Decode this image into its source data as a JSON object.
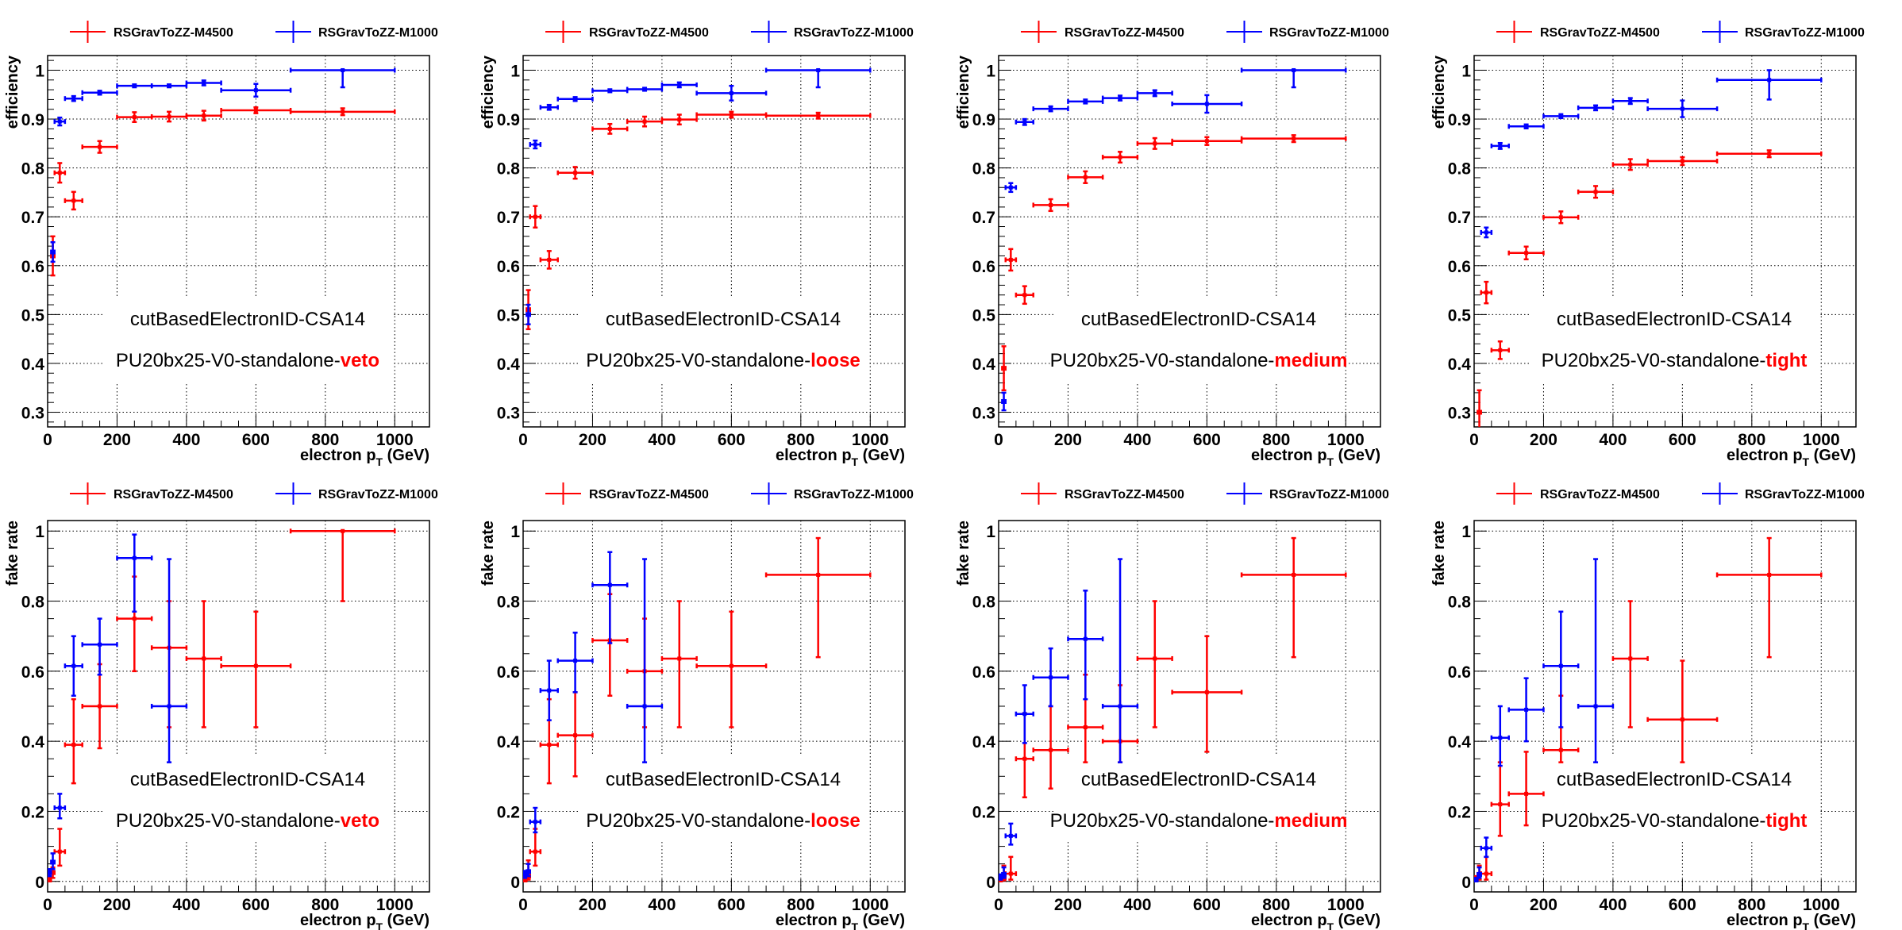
{
  "colors": {
    "M4500": "#ff0000",
    "M1000": "#0000ff"
  },
  "chart_data": [
    {
      "type": "scatter",
      "panel": "efficiency-veto",
      "xlabel": "electron p",
      "xlabel_sub": "T",
      "xlabel_unit": " (GeV)",
      "ylabel": "efficiency",
      "xlim": [
        0,
        1100
      ],
      "ylim": [
        0.27,
        1.03
      ],
      "xticks": [
        0,
        200,
        400,
        600,
        800,
        1000
      ],
      "yticks": [
        0.3,
        0.4,
        0.5,
        0.6,
        0.7,
        0.8,
        0.9,
        1
      ],
      "ytick_labels": [
        "0.3",
        "0.4",
        "0.5",
        "0.6",
        "0.7",
        "0.8",
        "0.9",
        "1"
      ],
      "grid": true,
      "legend": "top",
      "annotation": "cutBasedElectronID-CSA14",
      "annotation2_prefix": "PU20bx25-V0-standalone-",
      "annotation2_highlight": "veto",
      "x": [
        15,
        35,
        75,
        150,
        250,
        350,
        450,
        600,
        850
      ],
      "x_low": [
        10,
        20,
        50,
        100,
        200,
        300,
        400,
        500,
        700
      ],
      "x_high": [
        20,
        50,
        100,
        200,
        300,
        400,
        500,
        700,
        1000
      ],
      "series": [
        {
          "name": "RSGravToZZ-M4500",
          "color": "#ff0000",
          "y": [
            0.62,
            0.79,
            0.733,
            0.843,
            0.904,
            0.905,
            0.907,
            0.918,
            0.915
          ],
          "err": [
            0.04,
            0.02,
            0.018,
            0.012,
            0.01,
            0.01,
            0.01,
            0.006,
            0.007
          ]
        },
        {
          "name": "RSGravToZZ-M1000",
          "color": "#0000ff",
          "y": [
            0.628,
            0.895,
            0.942,
            0.954,
            0.968,
            0.968,
            0.974,
            0.959,
            1.0
          ],
          "err": [
            0.02,
            0.008,
            0.005,
            0.004,
            0.003,
            0.003,
            0.005,
            0.013,
            0.035
          ]
        }
      ]
    },
    {
      "type": "scatter",
      "panel": "efficiency-loose",
      "xlabel": "electron p",
      "xlabel_sub": "T",
      "xlabel_unit": " (GeV)",
      "ylabel": "efficiency",
      "xlim": [
        0,
        1100
      ],
      "ylim": [
        0.27,
        1.03
      ],
      "xticks": [
        0,
        200,
        400,
        600,
        800,
        1000
      ],
      "yticks": [
        0.3,
        0.4,
        0.5,
        0.6,
        0.7,
        0.8,
        0.9,
        1
      ],
      "ytick_labels": [
        "0.3",
        "0.4",
        "0.5",
        "0.6",
        "0.7",
        "0.8",
        "0.9",
        "1"
      ],
      "grid": true,
      "legend": "top",
      "annotation": "cutBasedElectronID-CSA14",
      "annotation2_prefix": "PU20bx25-V0-standalone-",
      "annotation2_highlight": "loose",
      "x": [
        15,
        35,
        75,
        150,
        250,
        350,
        450,
        600,
        850
      ],
      "x_low": [
        10,
        20,
        50,
        100,
        200,
        300,
        400,
        500,
        700
      ],
      "x_high": [
        20,
        50,
        100,
        200,
        300,
        400,
        500,
        700,
        1000
      ],
      "series": [
        {
          "name": "RSGravToZZ-M4500",
          "color": "#ff0000",
          "y": [
            0.51,
            0.7,
            0.612,
            0.79,
            0.88,
            0.895,
            0.899,
            0.909,
            0.907
          ],
          "err": [
            0.04,
            0.022,
            0.018,
            0.012,
            0.01,
            0.01,
            0.01,
            0.006,
            0.006
          ]
        },
        {
          "name": "RSGravToZZ-M1000",
          "color": "#0000ff",
          "y": [
            0.5,
            0.848,
            0.924,
            0.941,
            0.958,
            0.961,
            0.97,
            0.953,
            1.0
          ],
          "err": [
            0.02,
            0.008,
            0.005,
            0.004,
            0.003,
            0.003,
            0.005,
            0.015,
            0.035
          ]
        }
      ]
    },
    {
      "type": "scatter",
      "panel": "efficiency-medium",
      "xlabel": "electron p",
      "xlabel_sub": "T",
      "xlabel_unit": " (GeV)",
      "ylabel": "efficiency",
      "xlim": [
        0,
        1100
      ],
      "ylim": [
        0.27,
        1.03
      ],
      "xticks": [
        0,
        200,
        400,
        600,
        800,
        1000
      ],
      "yticks": [
        0.3,
        0.4,
        0.5,
        0.6,
        0.7,
        0.8,
        0.9,
        1
      ],
      "ytick_labels": [
        "0.3",
        "0.4",
        "0.5",
        "0.6",
        "0.7",
        "0.8",
        "0.9",
        "1"
      ],
      "grid": true,
      "legend": "top",
      "annotation": "cutBasedElectronID-CSA14",
      "annotation2_prefix": "PU20bx25-V0-standalone-",
      "annotation2_highlight": "medium",
      "x": [
        15,
        35,
        75,
        150,
        250,
        350,
        450,
        600,
        850
      ],
      "x_low": [
        10,
        20,
        50,
        100,
        200,
        300,
        400,
        500,
        700
      ],
      "x_high": [
        20,
        50,
        100,
        200,
        300,
        400,
        500,
        700,
        1000
      ],
      "series": [
        {
          "name": "RSGravToZZ-M4500",
          "color": "#ff0000",
          "y": [
            0.39,
            0.612,
            0.54,
            0.724,
            0.781,
            0.822,
            0.85,
            0.855,
            0.86
          ],
          "err": [
            0.045,
            0.022,
            0.018,
            0.012,
            0.012,
            0.011,
            0.011,
            0.008,
            0.007
          ]
        },
        {
          "name": "RSGravToZZ-M1000",
          "color": "#0000ff",
          "y": [
            0.322,
            0.76,
            0.894,
            0.921,
            0.936,
            0.943,
            0.953,
            0.931,
            1.0
          ],
          "err": [
            0.018,
            0.009,
            0.006,
            0.005,
            0.004,
            0.005,
            0.006,
            0.018,
            0.035
          ]
        }
      ]
    },
    {
      "type": "scatter",
      "panel": "efficiency-tight",
      "xlabel": "electron p",
      "xlabel_sub": "T",
      "xlabel_unit": " (GeV)",
      "ylabel": "efficiency",
      "xlim": [
        0,
        1100
      ],
      "ylim": [
        0.27,
        1.03
      ],
      "xticks": [
        0,
        200,
        400,
        600,
        800,
        1000
      ],
      "yticks": [
        0.3,
        0.4,
        0.5,
        0.6,
        0.7,
        0.8,
        0.9,
        1
      ],
      "ytick_labels": [
        "0.3",
        "0.4",
        "0.5",
        "0.6",
        "0.7",
        "0.8",
        "0.9",
        "1"
      ],
      "grid": true,
      "legend": "top",
      "annotation": "cutBasedElectronID-CSA14",
      "annotation2_prefix": "PU20bx25-V0-standalone-",
      "annotation2_highlight": "tight",
      "x": [
        15,
        35,
        75,
        150,
        250,
        350,
        450,
        600,
        850
      ],
      "x_low": [
        10,
        20,
        50,
        100,
        200,
        300,
        400,
        500,
        700
      ],
      "x_high": [
        20,
        50,
        100,
        200,
        300,
        400,
        500,
        700,
        1000
      ],
      "series": [
        {
          "name": "RSGravToZZ-M4500",
          "color": "#ff0000",
          "y": [
            0.3,
            0.545,
            0.427,
            0.626,
            0.699,
            0.751,
            0.807,
            0.814,
            0.829
          ],
          "err": [
            0.045,
            0.022,
            0.018,
            0.013,
            0.012,
            0.012,
            0.011,
            0.008,
            0.007
          ]
        },
        {
          "name": "RSGravToZZ-M1000",
          "color": "#0000ff",
          "y": [
            null,
            0.668,
            0.845,
            0.885,
            0.906,
            0.923,
            0.937,
            0.921,
            0.98
          ],
          "err": [
            0,
            0.01,
            0.006,
            0.004,
            0.004,
            0.005,
            0.006,
            0.017,
            0.04
          ]
        }
      ]
    },
    {
      "type": "scatter",
      "panel": "fakerate-veto",
      "xlabel": "electron p",
      "xlabel_sub": "T",
      "xlabel_unit": " (GeV)",
      "ylabel": "fake rate",
      "xlim": [
        0,
        1100
      ],
      "ylim": [
        -0.03,
        1.03
      ],
      "xticks": [
        0,
        200,
        400,
        600,
        800,
        1000
      ],
      "yticks": [
        0,
        0.2,
        0.4,
        0.6,
        0.8,
        1
      ],
      "ytick_labels": [
        "0",
        "0.2",
        "0.4",
        "0.6",
        "0.8",
        "1"
      ],
      "grid": true,
      "legend": "top",
      "annotation": "cutBasedElectronID-CSA14",
      "annotation2_prefix": "PU20bx25-V0-standalone-",
      "annotation2_highlight": "veto",
      "x": [
        5,
        15,
        35,
        75,
        150,
        250,
        350,
        450,
        600,
        850
      ],
      "x_low": [
        0,
        10,
        20,
        50,
        100,
        200,
        300,
        400,
        500,
        700
      ],
      "x_high": [
        10,
        20,
        50,
        100,
        200,
        300,
        400,
        500,
        700,
        1000
      ],
      "series": [
        {
          "name": "RSGravToZZ-M4500",
          "color": "#ff0000",
          "y": [
            0.005,
            0.025,
            0.085,
            0.39,
            0.5,
            0.75,
            0.667,
            0.636,
            0.615,
            1.0
          ],
          "lo": [
            0,
            0.01,
            0.045,
            0.28,
            0.38,
            0.6,
            0.44,
            0.44,
            0.44,
            0.8
          ],
          "hi": [
            0.015,
            0.04,
            0.15,
            0.52,
            0.62,
            0.87,
            0.8,
            0.8,
            0.77,
            1.0
          ]
        },
        {
          "name": "RSGravToZZ-M1000",
          "color": "#0000ff",
          "y": [
            0.025,
            0.055,
            0.21,
            0.615,
            0.676,
            0.923,
            0.5,
            null,
            null,
            null
          ],
          "lo": [
            0.015,
            0.035,
            0.18,
            0.53,
            0.59,
            0.77,
            0.34,
            0,
            0,
            0
          ],
          "hi": [
            0.035,
            0.08,
            0.25,
            0.7,
            0.75,
            0.99,
            0.92,
            0,
            0,
            0
          ]
        }
      ]
    },
    {
      "type": "scatter",
      "panel": "fakerate-loose",
      "xlabel": "electron p",
      "xlabel_sub": "T",
      "xlabel_unit": " (GeV)",
      "ylabel": "fake rate",
      "xlim": [
        0,
        1100
      ],
      "ylim": [
        -0.03,
        1.03
      ],
      "xticks": [
        0,
        200,
        400,
        600,
        800,
        1000
      ],
      "yticks": [
        0,
        0.2,
        0.4,
        0.6,
        0.8,
        1
      ],
      "ytick_labels": [
        "0",
        "0.2",
        "0.4",
        "0.6",
        "0.8",
        "1"
      ],
      "grid": true,
      "legend": "top",
      "annotation": "cutBasedElectronID-CSA14",
      "annotation2_prefix": "PU20bx25-V0-standalone-",
      "annotation2_highlight": "loose",
      "x": [
        5,
        15,
        35,
        75,
        150,
        250,
        350,
        450,
        600,
        850
      ],
      "x_low": [
        0,
        10,
        20,
        50,
        100,
        200,
        300,
        400,
        500,
        700
      ],
      "x_high": [
        10,
        20,
        50,
        100,
        200,
        300,
        400,
        500,
        700,
        1000
      ],
      "series": [
        {
          "name": "RSGravToZZ-M4500",
          "color": "#ff0000",
          "y": [
            0.005,
            0.015,
            0.085,
            0.39,
            0.417,
            0.688,
            0.6,
            0.636,
            0.615,
            0.875
          ],
          "lo": [
            0,
            0.005,
            0.045,
            0.28,
            0.3,
            0.53,
            0.44,
            0.44,
            0.44,
            0.64
          ],
          "hi": [
            0.015,
            0.06,
            0.15,
            0.52,
            0.54,
            0.82,
            0.75,
            0.8,
            0.77,
            0.98
          ]
        },
        {
          "name": "RSGravToZZ-M1000",
          "color": "#0000ff",
          "y": [
            0.02,
            0.028,
            0.17,
            0.545,
            0.63,
            0.846,
            0.5,
            null,
            null,
            null
          ],
          "lo": [
            0.01,
            0.015,
            0.14,
            0.46,
            0.54,
            0.68,
            0.34,
            0,
            0,
            0
          ],
          "hi": [
            0.03,
            0.05,
            0.21,
            0.63,
            0.71,
            0.94,
            0.92,
            0,
            0,
            0
          ]
        }
      ]
    },
    {
      "type": "scatter",
      "panel": "fakerate-medium",
      "xlabel": "electron p",
      "xlabel_sub": "T",
      "xlabel_unit": " (GeV)",
      "ylabel": "fake rate",
      "xlim": [
        0,
        1100
      ],
      "ylim": [
        -0.03,
        1.03
      ],
      "xticks": [
        0,
        200,
        400,
        600,
        800,
        1000
      ],
      "yticks": [
        0,
        0.2,
        0.4,
        0.6,
        0.8,
        1
      ],
      "ytick_labels": [
        "0",
        "0.2",
        "0.4",
        "0.6",
        "0.8",
        "1"
      ],
      "grid": true,
      "legend": "top",
      "annotation": "cutBasedElectronID-CSA14",
      "annotation2_prefix": "PU20bx25-V0-standalone-",
      "annotation2_highlight": "medium",
      "x": [
        5,
        15,
        35,
        75,
        150,
        250,
        350,
        450,
        600,
        850
      ],
      "x_low": [
        0,
        10,
        20,
        50,
        100,
        200,
        300,
        400,
        500,
        700
      ],
      "x_high": [
        10,
        20,
        50,
        100,
        200,
        300,
        400,
        500,
        700,
        1000
      ],
      "series": [
        {
          "name": "RSGravToZZ-M4500",
          "color": "#ff0000",
          "y": [
            0.005,
            0.01,
            0.022,
            0.35,
            0.375,
            0.44,
            0.4,
            0.636,
            0.54,
            0.875
          ],
          "lo": [
            0,
            0.003,
            0.005,
            0.24,
            0.265,
            0.34,
            0.34,
            0.44,
            0.37,
            0.64
          ],
          "hi": [
            0.015,
            0.045,
            0.07,
            0.48,
            0.5,
            0.59,
            0.56,
            0.8,
            0.7,
            0.98
          ]
        },
        {
          "name": "RSGravToZZ-M1000",
          "color": "#0000ff",
          "y": [
            0.012,
            0.02,
            0.13,
            0.478,
            0.582,
            0.692,
            0.5,
            null,
            null,
            null
          ],
          "lo": [
            0.005,
            0.01,
            0.105,
            0.395,
            0.5,
            0.52,
            0.34,
            0,
            0,
            0
          ],
          "hi": [
            0.02,
            0.04,
            0.165,
            0.56,
            0.665,
            0.83,
            0.92,
            0,
            0,
            0
          ]
        }
      ]
    },
    {
      "type": "scatter",
      "panel": "fakerate-tight",
      "xlabel": "electron p",
      "xlabel_sub": "T",
      "xlabel_unit": " (GeV)",
      "ylabel": "fake rate",
      "xlim": [
        0,
        1100
      ],
      "ylim": [
        -0.03,
        1.03
      ],
      "xticks": [
        0,
        200,
        400,
        600,
        800,
        1000
      ],
      "yticks": [
        0,
        0.2,
        0.4,
        0.6,
        0.8,
        1
      ],
      "ytick_labels": [
        "0",
        "0.2",
        "0.4",
        "0.6",
        "0.8",
        "1"
      ],
      "grid": true,
      "legend": "top",
      "annotation": "cutBasedElectronID-CSA14",
      "annotation2_prefix": "PU20bx25-V0-standalone-",
      "annotation2_highlight": "tight",
      "x": [
        5,
        15,
        35,
        75,
        150,
        250,
        350,
        450,
        600,
        850
      ],
      "x_low": [
        0,
        10,
        20,
        50,
        100,
        200,
        300,
        400,
        500,
        700
      ],
      "x_high": [
        10,
        20,
        50,
        100,
        200,
        300,
        400,
        500,
        700,
        1000
      ],
      "series": [
        {
          "name": "RSGravToZZ-M4500",
          "color": "#ff0000",
          "y": [
            0.005,
            0.02,
            0.022,
            0.22,
            0.25,
            0.375,
            null,
            0.636,
            0.462,
            0.875
          ],
          "lo": [
            0,
            0.005,
            0.005,
            0.13,
            0.16,
            0.34,
            0,
            0.44,
            0.34,
            0.64
          ],
          "hi": [
            0.015,
            0.045,
            0.07,
            0.34,
            0.37,
            0.53,
            0,
            0.8,
            0.63,
            0.98
          ]
        },
        {
          "name": "RSGravToZZ-M1000",
          "color": "#0000ff",
          "y": [
            0.005,
            0.02,
            0.095,
            0.41,
            0.49,
            0.615,
            0.5,
            null,
            null,
            null
          ],
          "lo": [
            0,
            0.01,
            0.07,
            0.33,
            0.4,
            0.44,
            0.34,
            0,
            0,
            0
          ],
          "hi": [
            0.01,
            0.04,
            0.125,
            0.5,
            0.58,
            0.77,
            0.92,
            0,
            0,
            0
          ]
        }
      ]
    }
  ]
}
